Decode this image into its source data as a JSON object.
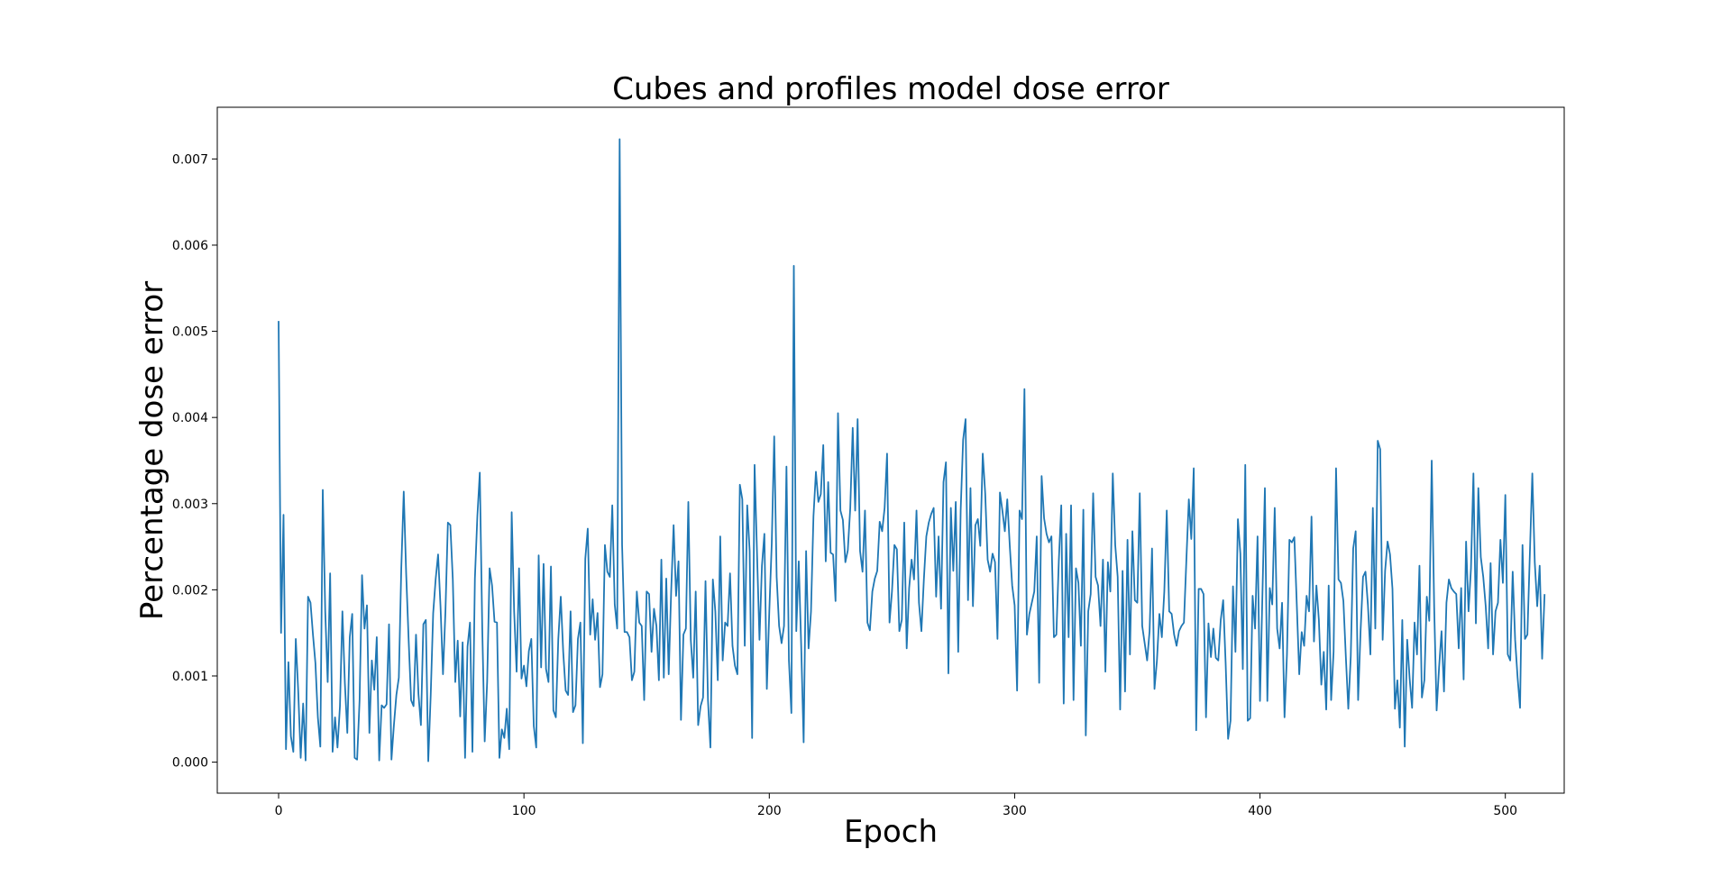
{
  "chart_data": {
    "type": "line",
    "title": "Cubes and profiles model dose error",
    "xlabel": "Epoch",
    "ylabel": "Percentage dose error",
    "xlim": [
      -25,
      524
    ],
    "ylim": [
      -0.00036,
      0.0076
    ],
    "xticks": [
      0,
      100,
      200,
      300,
      400,
      500
    ],
    "xtick_labels": [
      "0",
      "100",
      "200",
      "300",
      "400",
      "500"
    ],
    "yticks": [
      0,
      0.001,
      0.002,
      0.003,
      0.004,
      0.005,
      0.006,
      0.007
    ],
    "ytick_labels": [
      "0.000",
      "0.001",
      "0.002",
      "0.003",
      "0.004",
      "0.005",
      "0.006",
      "0.007"
    ],
    "grid": false,
    "legend": "none",
    "series": [
      {
        "color": "#1f77b4",
        "x_start": 0,
        "x_step": 1,
        "values": [
          0.00512,
          0.0015,
          0.00287,
          0.00015,
          0.00116,
          0.0003,
          0.00012,
          0.00143,
          0.00082,
          5e-05,
          0.00068,
          2e-05,
          0.00192,
          0.00185,
          0.00148,
          0.00115,
          0.00052,
          0.00018,
          0.00316,
          0.00175,
          0.00093,
          0.00219,
          0.00012,
          0.00052,
          0.00017,
          0.00065,
          0.00175,
          0.00092,
          0.00034,
          0.00145,
          0.00172,
          5e-05,
          3e-05,
          0.00072,
          0.00217,
          0.00155,
          0.00182,
          0.00034,
          0.00118,
          0.00084,
          0.00145,
          2e-05,
          0.00066,
          0.00063,
          0.00067,
          0.0016,
          3e-05,
          0.00043,
          0.00078,
          0.00098,
          0.00225,
          0.00314,
          0.00218,
          0.00142,
          0.00072,
          0.00065,
          0.00148,
          0.00079,
          0.00043,
          0.0016,
          0.00165,
          1e-05,
          0.00078,
          0.00173,
          0.00212,
          0.00241,
          0.0018,
          0.00102,
          0.00175,
          0.00278,
          0.00275,
          0.00212,
          0.00093,
          0.00141,
          0.00053,
          0.00139,
          5e-05,
          0.00134,
          0.00162,
          0.00012,
          0.00213,
          0.00285,
          0.00336,
          0.00156,
          0.00024,
          0.00093,
          0.00225,
          0.00205,
          0.00163,
          0.00162,
          5e-05,
          0.00038,
          0.00028,
          0.00062,
          0.00015,
          0.0029,
          0.00175,
          0.00105,
          0.00225,
          0.00097,
          0.00112,
          0.00088,
          0.00129,
          0.00143,
          0.00042,
          0.00017,
          0.0024,
          0.0011,
          0.0023,
          0.00108,
          0.00093,
          0.00227,
          0.0006,
          0.00052,
          0.00143,
          0.00192,
          0.00128,
          0.00083,
          0.00078,
          0.00175,
          0.00058,
          0.00066,
          0.00143,
          0.00162,
          0.00022,
          0.00236,
          0.00271,
          0.00148,
          0.00189,
          0.00142,
          0.00173,
          0.00087,
          0.00102,
          0.00252,
          0.00221,
          0.00215,
          0.00298,
          0.00183,
          0.00155,
          0.00723,
          0.00252,
          0.00151,
          0.00151,
          0.00145,
          0.00095,
          0.00105,
          0.00198,
          0.00162,
          0.00158,
          0.00072,
          0.00198,
          0.00195,
          0.00128,
          0.00178,
          0.00158,
          0.00095,
          0.00235,
          0.00098,
          0.00213,
          0.00102,
          0.00198,
          0.00275,
          0.00193,
          0.00233,
          0.00049,
          0.00148,
          0.00155,
          0.00302,
          0.00142,
          0.00098,
          0.00198,
          0.00043,
          0.00065,
          0.00075,
          0.0021,
          0.00072,
          0.00017,
          0.00212,
          0.00175,
          0.00095,
          0.00262,
          0.00118,
          0.00162,
          0.00158,
          0.00219,
          0.00135,
          0.00112,
          0.00102,
          0.00322,
          0.00305,
          0.00135,
          0.00298,
          0.00245,
          0.00028,
          0.00345,
          0.00242,
          0.00142,
          0.00228,
          0.00265,
          0.00085,
          0.00175,
          0.00254,
          0.00378,
          0.00215,
          0.00158,
          0.00138,
          0.00158,
          0.00343,
          0.00118,
          0.00057,
          0.00576,
          0.00152,
          0.00233,
          0.00135,
          0.00023,
          0.00245,
          0.00132,
          0.00175,
          0.00285,
          0.00337,
          0.00302,
          0.00311,
          0.00368,
          0.00233,
          0.00325,
          0.00243,
          0.00241,
          0.00187,
          0.00405,
          0.00292,
          0.00281,
          0.00232,
          0.00246,
          0.00295,
          0.00388,
          0.00292,
          0.00398,
          0.00245,
          0.00221,
          0.00292,
          0.00162,
          0.00153,
          0.00198,
          0.00213,
          0.00222,
          0.00279,
          0.00268,
          0.00295,
          0.00358,
          0.00162,
          0.00198,
          0.00252,
          0.00247,
          0.00152,
          0.00165,
          0.00278,
          0.00132,
          0.00202,
          0.00235,
          0.00212,
          0.00292,
          0.00185,
          0.00152,
          0.00212,
          0.00262,
          0.00278,
          0.00288,
          0.00295,
          0.00192,
          0.00262,
          0.00178,
          0.00325,
          0.00348,
          0.00103,
          0.00295,
          0.00222,
          0.00302,
          0.00128,
          0.00292,
          0.00374,
          0.00398,
          0.00188,
          0.00318,
          0.00181,
          0.00275,
          0.00282,
          0.00251,
          0.00358,
          0.00312,
          0.00235,
          0.00221,
          0.00242,
          0.00232,
          0.00143,
          0.00313,
          0.00292,
          0.00268,
          0.00305,
          0.00252,
          0.00205,
          0.00182,
          0.00083,
          0.00292,
          0.00282,
          0.00433,
          0.00148,
          0.00172,
          0.00185,
          0.00198,
          0.00262,
          0.00092,
          0.00332,
          0.00283,
          0.00265,
          0.00255,
          0.00262,
          0.00145,
          0.00148,
          0.00233,
          0.00298,
          0.00068,
          0.00265,
          0.00145,
          0.00298,
          0.00072,
          0.00225,
          0.00208,
          0.00135,
          0.00293,
          0.00031,
          0.00175,
          0.00195,
          0.00312,
          0.00215,
          0.00205,
          0.00158,
          0.00235,
          0.00105,
          0.00232,
          0.00198,
          0.00335,
          0.00252,
          0.00215,
          0.00061,
          0.00222,
          0.00082,
          0.00258,
          0.00125,
          0.00268,
          0.00188,
          0.00185,
          0.00312,
          0.00158,
          0.00138,
          0.00118,
          0.00152,
          0.00248,
          0.00085,
          0.00118,
          0.00172,
          0.00145,
          0.00198,
          0.00292,
          0.00175,
          0.00172,
          0.00148,
          0.00135,
          0.00152,
          0.00158,
          0.00162,
          0.00235,
          0.00305,
          0.00259,
          0.00341,
          0.00037,
          0.00201,
          0.00201,
          0.00195,
          0.00052,
          0.00161,
          0.00122,
          0.00155,
          0.00121,
          0.00118,
          0.00165,
          0.00188,
          0.00115,
          0.00027,
          0.00048,
          0.00204,
          0.00128,
          0.00282,
          0.00242,
          0.00108,
          0.00345,
          0.00048,
          0.00051,
          0.00193,
          0.00155,
          0.00262,
          0.00071,
          0.00195,
          0.00318,
          0.00071,
          0.00202,
          0.00183,
          0.00295,
          0.00155,
          0.00132,
          0.00185,
          0.00052,
          0.00125,
          0.00258,
          0.00255,
          0.00261,
          0.00183,
          0.00102,
          0.00151,
          0.00135,
          0.00193,
          0.00175,
          0.00285,
          0.0014,
          0.00205,
          0.00165,
          0.0009,
          0.00128,
          0.00061,
          0.00205,
          0.00072,
          0.00128,
          0.00341,
          0.00212,
          0.00208,
          0.00187,
          0.00122,
          0.00062,
          0.00123,
          0.00248,
          0.00268,
          0.00072,
          0.00152,
          0.00215,
          0.00221,
          0.00182,
          0.00125,
          0.00295,
          0.00155,
          0.00373,
          0.00363,
          0.00142,
          0.00222,
          0.00256,
          0.00241,
          0.00201,
          0.00062,
          0.00095,
          0.0004,
          0.00165,
          0.00018,
          0.00142,
          0.00097,
          0.00063,
          0.00162,
          0.00125,
          0.00228,
          0.00075,
          0.00095,
          0.00192,
          0.00164,
          0.0035,
          0.0018,
          0.0006,
          0.0011,
          0.00152,
          0.00082,
          0.00185,
          0.00212,
          0.00202,
          0.00198,
          0.00195,
          0.00132,
          0.00202,
          0.00096,
          0.00256,
          0.00175,
          0.00225,
          0.00335,
          0.00161,
          0.00318,
          0.00238,
          0.00215,
          0.00181,
          0.00132,
          0.00231,
          0.00125,
          0.00175,
          0.00185,
          0.00258,
          0.00208,
          0.0031,
          0.00125,
          0.00118,
          0.00221,
          0.00142,
          0.00098,
          0.00063,
          0.00252,
          0.00143,
          0.00148,
          0.00242,
          0.00335,
          0.00232,
          0.00181,
          0.00228,
          0.0012,
          0.00195
        ]
      }
    ]
  }
}
